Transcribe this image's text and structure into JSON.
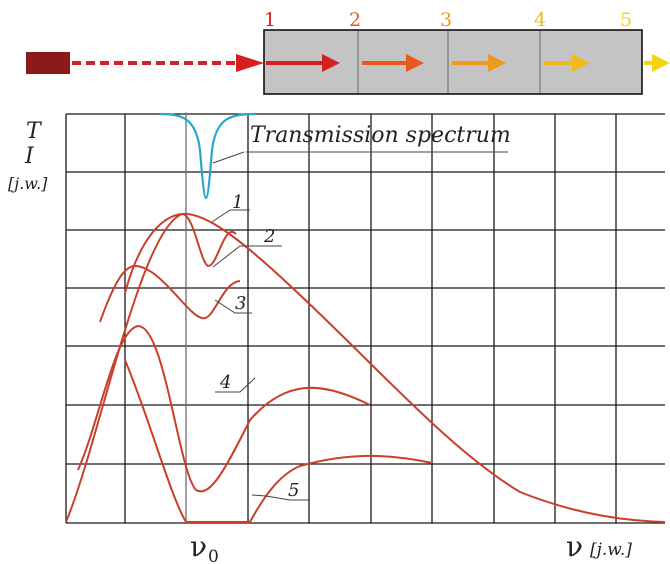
{
  "colors": {
    "laser": "#8b1a1a",
    "beam": "#d42020",
    "curve": "#c8402c",
    "grid": "#1a1a1a",
    "transmission": "#2aa6c9",
    "sample": "#c4c4c4",
    "arrow_1": "#d42020",
    "arrow_2": "#e8581c",
    "arrow_3": "#ef9a1d",
    "arrow_4": "#f1bb1b",
    "arrow_5": "#f4d314"
  },
  "stages": [
    {
      "label": "1",
      "color": "#d42020"
    },
    {
      "label": "2",
      "color": "#e8581c"
    },
    {
      "label": "3",
      "color": "#ef9a1d"
    },
    {
      "label": "4",
      "color": "#f1bb1b"
    },
    {
      "label": "5",
      "color": "#f4d314"
    }
  ],
  "axis": {
    "y_label_1": "T",
    "y_label_2": "I",
    "y_unit": "[j.w.]",
    "x_label": "ν",
    "x_unit": "[j.w.]",
    "x0_symbol": "ν",
    "x0_subscript": "0"
  },
  "transmission_label": "Transmission spectrum",
  "curves": [
    {
      "label": "1"
    },
    {
      "label": "2"
    },
    {
      "label": "3"
    },
    {
      "label": "4"
    },
    {
      "label": "5"
    }
  ]
}
